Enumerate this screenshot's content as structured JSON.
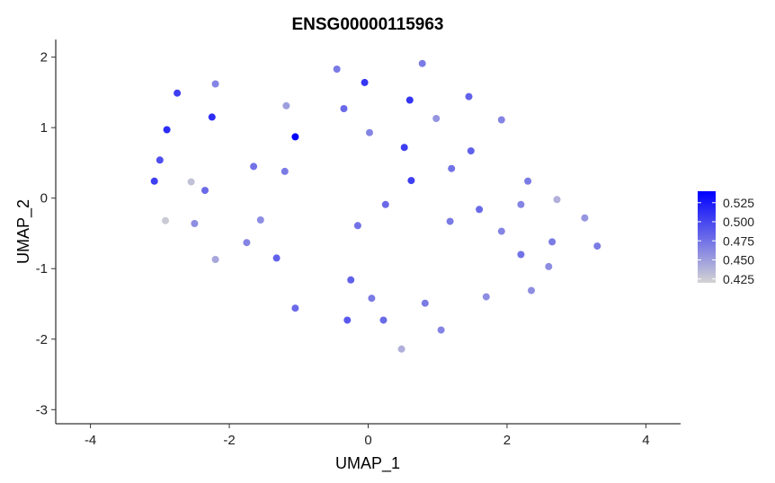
{
  "chart_data": {
    "type": "scatter",
    "title": "ENSG00000115963",
    "xlabel": "UMAP_1",
    "ylabel": "UMAP_2",
    "xlim": [
      -4.5,
      4.5
    ],
    "ylim": [
      -3.2,
      2.25
    ],
    "xticks": [
      -4,
      -2,
      0,
      2,
      4
    ],
    "yticks": [
      -3,
      -2,
      -1,
      0,
      1,
      2
    ],
    "grid": false,
    "legend": {
      "placement": "right",
      "type": "colorbar",
      "min": 0.42,
      "max": 0.54,
      "ticks": [
        0.425,
        0.45,
        0.475,
        0.5,
        0.525
      ],
      "tick_labels": [
        "0.425",
        "0.450",
        "0.475",
        "0.500",
        "0.525"
      ],
      "low_color": "#d3d3d3",
      "high_color": "#0000ff"
    },
    "points": [
      {
        "x": -1.05,
        "y": 0.87,
        "value": 0.54
      },
      {
        "x": -2.75,
        "y": 1.49,
        "value": 0.505
      },
      {
        "x": -2.2,
        "y": 1.62,
        "value": 0.465
      },
      {
        "x": -2.9,
        "y": 0.97,
        "value": 0.515
      },
      {
        "x": -2.25,
        "y": 1.15,
        "value": 0.515
      },
      {
        "x": -3.0,
        "y": 0.54,
        "value": 0.495
      },
      {
        "x": -3.08,
        "y": 0.24,
        "value": 0.505
      },
      {
        "x": -2.55,
        "y": 0.23,
        "value": 0.43
      },
      {
        "x": -2.35,
        "y": 0.11,
        "value": 0.48
      },
      {
        "x": -2.92,
        "y": -0.32,
        "value": 0.425
      },
      {
        "x": -2.5,
        "y": -0.36,
        "value": 0.46
      },
      {
        "x": -2.2,
        "y": -0.87,
        "value": 0.445
      },
      {
        "x": -1.65,
        "y": 0.45,
        "value": 0.475
      },
      {
        "x": -1.55,
        "y": -0.31,
        "value": 0.46
      },
      {
        "x": -1.75,
        "y": -0.63,
        "value": 0.465
      },
      {
        "x": -1.32,
        "y": -0.85,
        "value": 0.485
      },
      {
        "x": -1.18,
        "y": 1.31,
        "value": 0.45
      },
      {
        "x": -1.2,
        "y": 0.38,
        "value": 0.47
      },
      {
        "x": -1.05,
        "y": -1.56,
        "value": 0.48
      },
      {
        "x": -0.45,
        "y": 1.83,
        "value": 0.47
      },
      {
        "x": -0.35,
        "y": 1.27,
        "value": 0.48
      },
      {
        "x": -0.05,
        "y": 1.64,
        "value": 0.51
      },
      {
        "x": 0.02,
        "y": 0.93,
        "value": 0.465
      },
      {
        "x": -0.15,
        "y": -0.39,
        "value": 0.475
      },
      {
        "x": 0.25,
        "y": -0.09,
        "value": 0.48
      },
      {
        "x": 0.52,
        "y": 0.72,
        "value": 0.505
      },
      {
        "x": 0.6,
        "y": 1.39,
        "value": 0.51
      },
      {
        "x": 0.62,
        "y": 0.25,
        "value": 0.505
      },
      {
        "x": 0.78,
        "y": 1.91,
        "value": 0.47
      },
      {
        "x": 0.98,
        "y": 1.13,
        "value": 0.455
      },
      {
        "x": 1.2,
        "y": 0.42,
        "value": 0.475
      },
      {
        "x": 1.45,
        "y": 1.44,
        "value": 0.485
      },
      {
        "x": 1.48,
        "y": 0.67,
        "value": 0.485
      },
      {
        "x": 1.18,
        "y": -0.33,
        "value": 0.47
      },
      {
        "x": 1.6,
        "y": -0.16,
        "value": 0.48
      },
      {
        "x": 1.92,
        "y": 1.11,
        "value": 0.465
      },
      {
        "x": 1.92,
        "y": -0.47,
        "value": 0.465
      },
      {
        "x": 2.2,
        "y": -0.09,
        "value": 0.465
      },
      {
        "x": 2.3,
        "y": 0.24,
        "value": 0.47
      },
      {
        "x": 2.72,
        "y": -0.02,
        "value": 0.44
      },
      {
        "x": 2.2,
        "y": -0.8,
        "value": 0.475
      },
      {
        "x": 2.65,
        "y": -0.62,
        "value": 0.47
      },
      {
        "x": 2.6,
        "y": -0.97,
        "value": 0.46
      },
      {
        "x": 2.35,
        "y": -1.31,
        "value": 0.46
      },
      {
        "x": 1.7,
        "y": -1.4,
        "value": 0.46
      },
      {
        "x": 3.12,
        "y": -0.28,
        "value": 0.455
      },
      {
        "x": 3.3,
        "y": -0.68,
        "value": 0.47
      },
      {
        "x": -0.25,
        "y": -1.16,
        "value": 0.485
      },
      {
        "x": 0.05,
        "y": -1.42,
        "value": 0.47
      },
      {
        "x": -0.3,
        "y": -1.73,
        "value": 0.49
      },
      {
        "x": 0.22,
        "y": -1.73,
        "value": 0.48
      },
      {
        "x": 0.82,
        "y": -1.49,
        "value": 0.47
      },
      {
        "x": 1.05,
        "y": -1.87,
        "value": 0.465
      },
      {
        "x": 0.48,
        "y": -2.14,
        "value": 0.44
      }
    ]
  }
}
